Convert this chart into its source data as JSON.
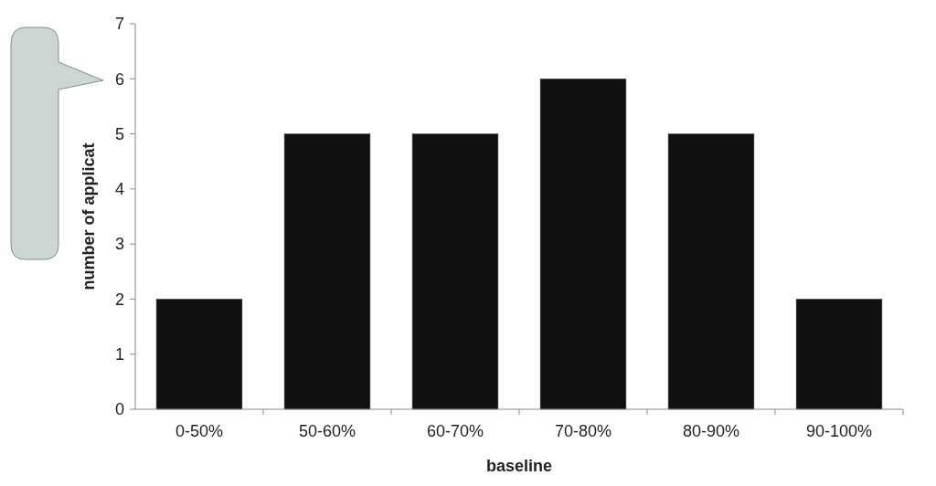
{
  "chart_data": {
    "type": "bar",
    "xlabel": "baseline",
    "ylabel": "number of applicat",
    "categories": [
      "0-50%",
      "50-60%",
      "60-70%",
      "70-80%",
      "80-90%",
      "90-100%"
    ],
    "values": [
      2,
      5,
      5,
      6,
      5,
      2
    ],
    "color": "#111111",
    "ylim": [
      0,
      7
    ],
    "yticks": [
      0,
      1,
      2,
      3,
      4,
      5,
      6,
      7
    ],
    "grid": false
  }
}
